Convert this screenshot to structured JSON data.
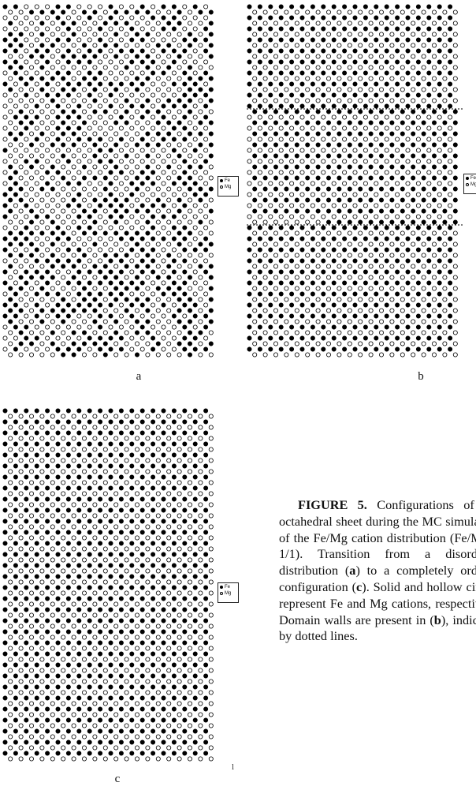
{
  "panels": [
    {
      "id": "a",
      "label": "a",
      "ordering": "random"
    },
    {
      "id": "b",
      "label": "b",
      "ordering": "ordered-with-domain-walls"
    },
    {
      "id": "c",
      "label": "c",
      "ordering": "ordered"
    }
  ],
  "legend": {
    "fe_label": "Fe",
    "mg_label": "Mg",
    "fe_symbol": "solid circle",
    "mg_symbol": "hollow circle"
  },
  "caption": {
    "figure_label": "FIGURE 5.",
    "text_1": " Configurations of the octahedral sheet during the MC simulation of the Fe/Mg cation distribution (Fe/Mg = 1/1). Transition from a disordered distribution (",
    "ref_a": "a",
    "text_2": ") to a completely ordered configuration (",
    "ref_c": "c",
    "text_3": "). Solid and hollow circles represent Fe and Mg cations, respectively. Domain walls are present in (",
    "ref_b": "b",
    "text_4": "), indicated by dotted lines."
  },
  "stray_mark": "l",
  "colors": {
    "ink": "#000000",
    "background": "#ffffff"
  }
}
